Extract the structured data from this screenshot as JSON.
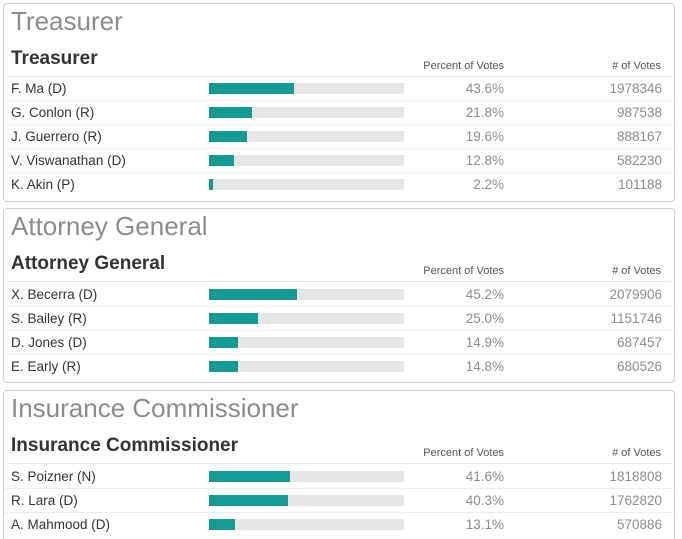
{
  "colors": {
    "accent": "#149a94",
    "track": "#e6e6e6",
    "border": "#cfcfcf",
    "panel_title": "#8c8c8c"
  },
  "panels": [
    {
      "panel_title": "Treasurer",
      "race_title": "Treasurer",
      "pct_header": "Percent of Votes",
      "votes_header": "# of Votes",
      "rows": [
        {
          "candidate": "F. Ma (D)",
          "percent": "43.6%",
          "share": 0.436,
          "votes": "1978346"
        },
        {
          "candidate": "G. Conlon (R)",
          "percent": "21.8%",
          "share": 0.218,
          "votes": "987538"
        },
        {
          "candidate": "J. Guerrero (R)",
          "percent": "19.6%",
          "share": 0.196,
          "votes": "888167"
        },
        {
          "candidate": "V. Viswanathan (D)",
          "percent": "12.8%",
          "share": 0.128,
          "votes": "582230"
        },
        {
          "candidate": "K. Akin (P)",
          "percent": "2.2%",
          "share": 0.022,
          "votes": "101188"
        }
      ]
    },
    {
      "panel_title": "Attorney General",
      "race_title": "Attorney General",
      "pct_header": "Percent of Votes",
      "votes_header": "# of Votes",
      "rows": [
        {
          "candidate": "X. Becerra (D)",
          "percent": "45.2%",
          "share": 0.452,
          "votes": "2079906"
        },
        {
          "candidate": "S. Bailey (R)",
          "percent": "25.0%",
          "share": 0.25,
          "votes": "1151746"
        },
        {
          "candidate": "D. Jones (D)",
          "percent": "14.9%",
          "share": 0.149,
          "votes": "687457"
        },
        {
          "candidate": "E. Early (R)",
          "percent": "14.8%",
          "share": 0.148,
          "votes": "680526"
        }
      ]
    },
    {
      "panel_title": "Insurance Commissioner",
      "race_title": "Insurance Commissioner",
      "pct_header": "Percent of Votes",
      "votes_header": "# of Votes",
      "rows": [
        {
          "candidate": "S. Poizner (N)",
          "percent": "41.6%",
          "share": 0.416,
          "votes": "1818808"
        },
        {
          "candidate": "R. Lara (D)",
          "percent": "40.3%",
          "share": 0.403,
          "votes": "1762820"
        },
        {
          "candidate": "A. Mahmood (D)",
          "percent": "13.1%",
          "share": 0.131,
          "votes": "570886"
        }
      ]
    }
  ]
}
